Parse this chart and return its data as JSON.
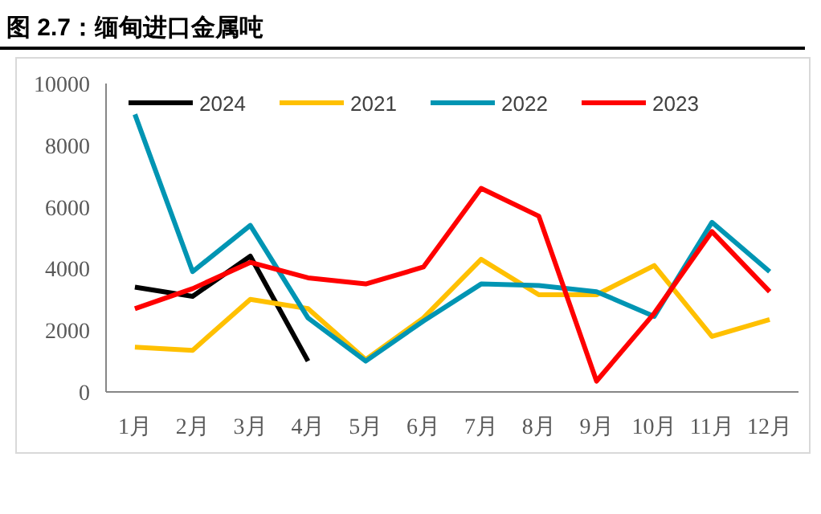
{
  "chart_data": {
    "type": "line",
    "title": "图 2.7：缅甸进口金属吨",
    "categories": [
      "1月",
      "2月",
      "3月",
      "4月",
      "5月",
      "6月",
      "7月",
      "8月",
      "9月",
      "10月",
      "11月",
      "12月"
    ],
    "series": [
      {
        "name": "2024",
        "color": "#000000",
        "values": [
          3400,
          3100,
          4400,
          1000,
          null,
          null,
          null,
          null,
          null,
          null,
          null,
          null
        ]
      },
      {
        "name": "2021",
        "color": "#ffc000",
        "values": [
          1450,
          1350,
          3000,
          2700,
          1050,
          2400,
          4300,
          3150,
          3150,
          4100,
          1800,
          2350
        ]
      },
      {
        "name": "2022",
        "color": "#0095b3",
        "values": [
          9000,
          3900,
          5400,
          2400,
          1000,
          2300,
          3500,
          3450,
          3250,
          2450,
          5500,
          3900
        ]
      },
      {
        "name": "2023",
        "color": "#ff0000",
        "values": [
          2700,
          3350,
          4200,
          3700,
          3500,
          4050,
          6600,
          5700,
          350,
          2550,
          5200,
          3250
        ]
      }
    ],
    "ylim": [
      0,
      10000
    ],
    "yticks": [
      0,
      2000,
      4000,
      6000,
      8000,
      10000
    ],
    "grid": false,
    "legend": "top",
    "marker": "none",
    "line_style": "solid"
  }
}
